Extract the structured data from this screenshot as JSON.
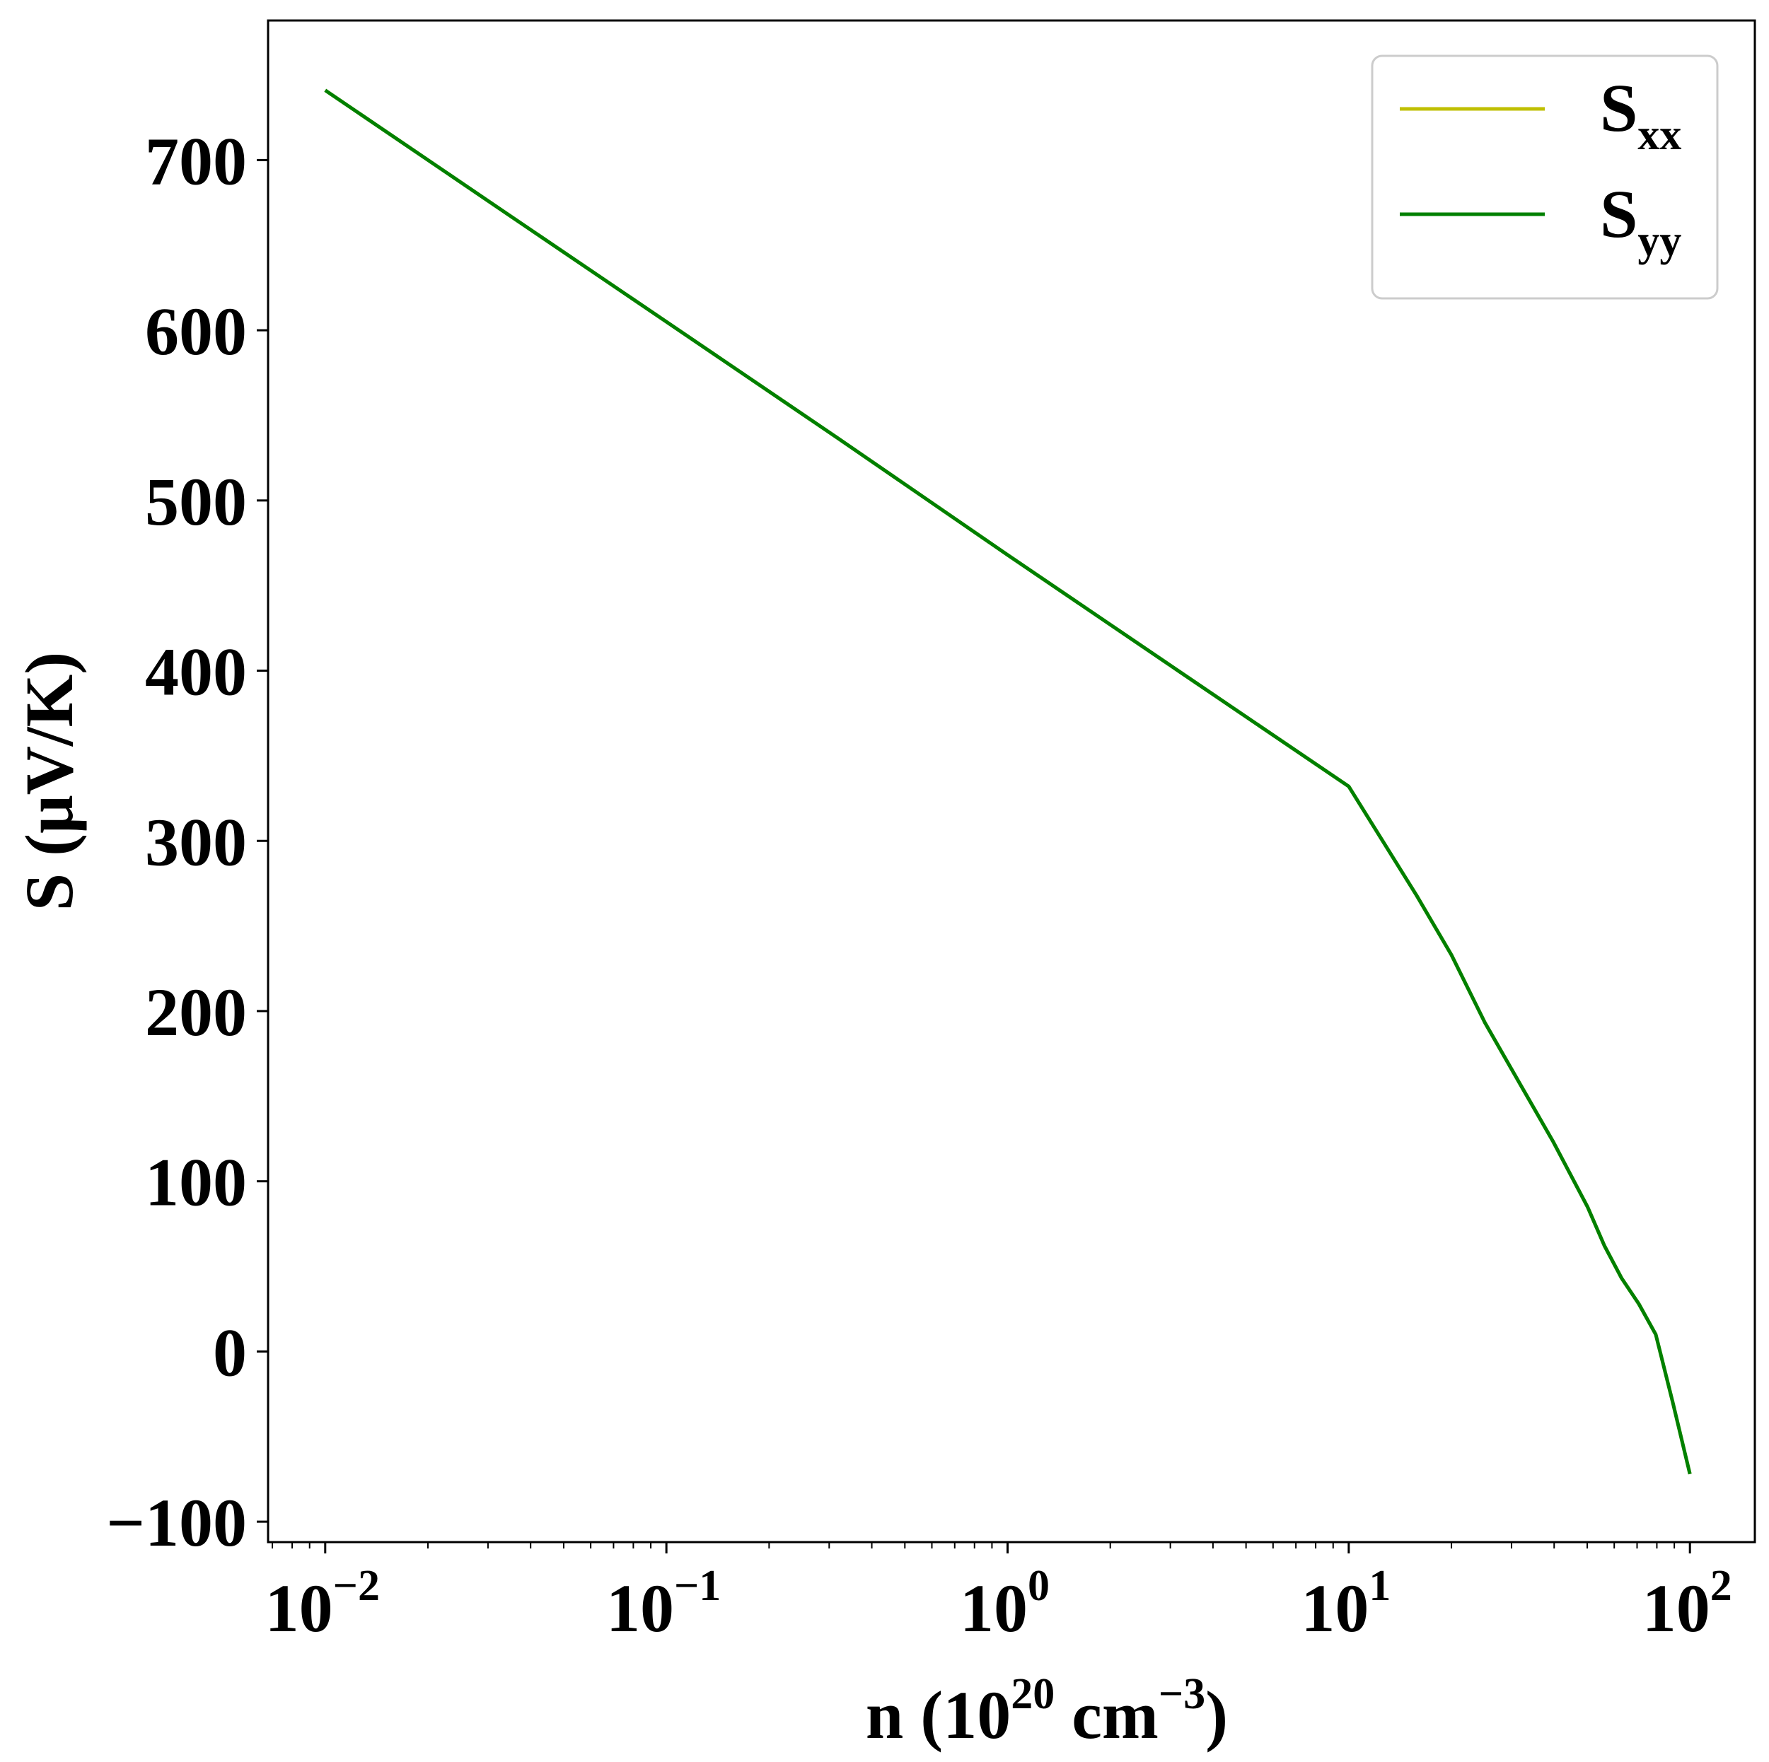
{
  "chart_data": {
    "type": "line",
    "title": "",
    "xlabel": {
      "base": "n (10",
      "sup1": "20",
      "mid": " cm",
      "sup2": "−3",
      "end": ")"
    },
    "ylabel": "S (μV/K)",
    "xscale": "log",
    "xlim": [
      0.0068,
      155
    ],
    "ylim": [
      -112,
      782
    ],
    "grid": false,
    "legend_position": "top-right",
    "x_ticks": [
      {
        "value": 0.01,
        "base": "10",
        "exp": "−2"
      },
      {
        "value": 0.1,
        "base": "10",
        "exp": "−1"
      },
      {
        "value": 1,
        "base": "10",
        "exp": "0"
      },
      {
        "value": 10,
        "base": "10",
        "exp": "1"
      },
      {
        "value": 100,
        "base": "10",
        "exp": "2"
      }
    ],
    "y_ticks": [
      {
        "value": -100,
        "label": "−100"
      },
      {
        "value": 0,
        "label": "0"
      },
      {
        "value": 100,
        "label": "100"
      },
      {
        "value": 200,
        "label": "200"
      },
      {
        "value": 300,
        "label": "300"
      },
      {
        "value": 400,
        "label": "400"
      },
      {
        "value": 500,
        "label": "500"
      },
      {
        "value": 600,
        "label": "600"
      },
      {
        "value": 700,
        "label": "700"
      }
    ],
    "series": [
      {
        "name": "S_xx",
        "label_main": "S",
        "label_sub": "xx",
        "color": "#bfbf00",
        "x": [
          0.01,
          0.0316,
          0.1,
          0.316,
          1,
          3.16,
          10,
          15.8,
          20,
          25.1,
          31.6,
          39.8,
          50.1,
          56.2,
          63.1,
          70.8,
          79.4,
          89.1,
          100
        ],
        "y": [
          741,
          673,
          605,
          537,
          468,
          400,
          332,
          268,
          233,
          193,
          158,
          123,
          85,
          62,
          43,
          28,
          10,
          -30,
          -72
        ]
      },
      {
        "name": "S_yy",
        "label_main": "S",
        "label_sub": "yy",
        "color": "#008000",
        "x": [
          0.01,
          0.0316,
          0.1,
          0.316,
          1,
          3.16,
          10,
          15.8,
          20,
          25.1,
          31.6,
          39.8,
          50.1,
          56.2,
          63.1,
          70.8,
          79.4,
          89.1,
          100
        ],
        "y": [
          741,
          673,
          605,
          537,
          468,
          400,
          332,
          268,
          233,
          193,
          158,
          123,
          85,
          62,
          43,
          28,
          10,
          -30,
          -72
        ]
      }
    ]
  }
}
